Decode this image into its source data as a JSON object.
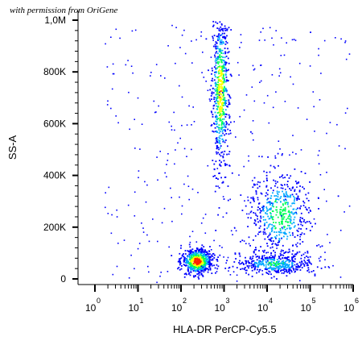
{
  "watermark": "with permission from OriGene",
  "chart_data": {
    "type": "scatter",
    "subtype": "flow-cytometry density dot plot",
    "xlabel": "HLA-DR PerCP-Cy5.5",
    "ylabel": "SS-A",
    "x_scale": "log",
    "y_scale": "linear",
    "xlim": [
      1,
      1000000
    ],
    "ylim": [
      0,
      1000000
    ],
    "x_ticks": [
      {
        "value": 1,
        "base": "10",
        "exp": "0"
      },
      {
        "value": 10,
        "base": "10",
        "exp": "1"
      },
      {
        "value": 100,
        "base": "10",
        "exp": "2"
      },
      {
        "value": 1000,
        "base": "10",
        "exp": "3"
      },
      {
        "value": 10000,
        "base": "10",
        "exp": "4"
      },
      {
        "value": 100000,
        "base": "10",
        "exp": "5"
      },
      {
        "value": 1000000,
        "base": "10",
        "exp": "6"
      }
    ],
    "y_ticks": [
      {
        "value": 0,
        "label": "0"
      },
      {
        "value": 200000,
        "label": "200K"
      },
      {
        "value": 400000,
        "label": "400K"
      },
      {
        "value": 600000,
        "label": "600K"
      },
      {
        "value": 800000,
        "label": "800K"
      },
      {
        "value": 1000000,
        "label": "1,0M"
      }
    ],
    "grid": false,
    "legend": "none",
    "density_colors": [
      "#0000ff",
      "#00aaff",
      "#00ff55",
      "#ffff00",
      "#ff2200"
    ],
    "populations": [
      {
        "x_center": 800,
        "x_spread_decades": 0.1,
        "y_center": 730000,
        "y_spread": 160000,
        "peak_density": 0.8
      },
      {
        "x_center": 230,
        "x_spread_decades": 0.18,
        "y_center": 70000,
        "y_spread": 25000,
        "peak_density": 1.0
      },
      {
        "x_center": 20000,
        "x_spread_decades": 0.35,
        "y_center": 250000,
        "y_spread": 90000,
        "peak_density": 0.55
      },
      {
        "x_center": 15000,
        "x_spread_decades": 0.45,
        "y_center": 60000,
        "y_spread": 20000,
        "peak_density": 0.45
      }
    ]
  }
}
